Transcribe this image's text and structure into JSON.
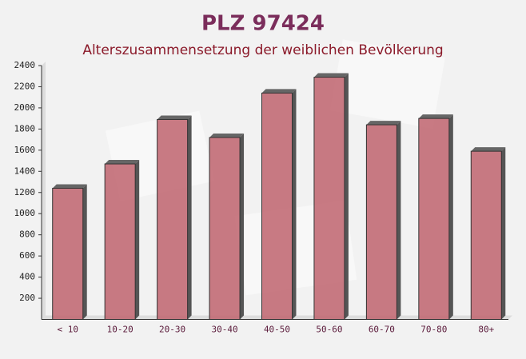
{
  "chart_data": {
    "type": "bar",
    "title": "PLZ 97424",
    "subtitle": "Alterszusammensetzung der weiblichen Bevölkerung",
    "categories": [
      "< 10",
      "10-20",
      "20-30",
      "30-40",
      "40-50",
      "50-60",
      "60-70",
      "70-80",
      "80+"
    ],
    "values": [
      1240,
      1470,
      1890,
      1720,
      2140,
      2290,
      1840,
      1900,
      1590
    ],
    "color": "#c0646e",
    "ylim": [
      0,
      2400
    ],
    "yticks": [
      200,
      400,
      600,
      800,
      1000,
      1200,
      1400,
      1600,
      1800,
      2000,
      2200,
      2400
    ],
    "grid": false
  }
}
